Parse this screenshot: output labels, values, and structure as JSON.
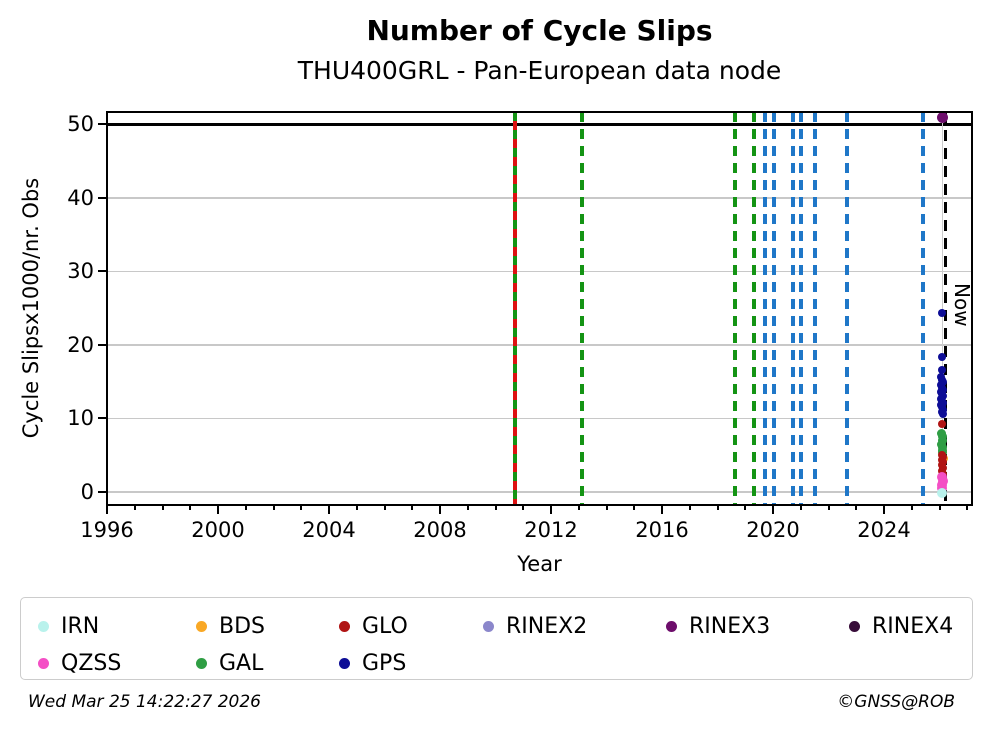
{
  "title": "Number of Cycle Slips",
  "subtitle": "THU400GRL - Pan-European data node",
  "footer": {
    "timestamp": "Wed Mar 25 14:22:27 2026",
    "credit": "©GNSS@ROB"
  },
  "chart_data": {
    "type": "scatter",
    "title": "Number of Cycle Slips",
    "subtitle": "THU400GRL - Pan-European data node",
    "xlabel": "Year",
    "ylabel": "Cycle Slipsx1000/nr. Obs",
    "xlim": [
      1996,
      2027.17
    ],
    "ylim": [
      -1.77,
      51.7
    ],
    "xticks_major": [
      1996,
      2000,
      2004,
      2008,
      2012,
      2016,
      2020,
      2024
    ],
    "xticks_minor_step": 1,
    "yticks": [
      0,
      10,
      20,
      30,
      40,
      50
    ],
    "grid": "horizontal-only",
    "grid_color": "#c8c8c8",
    "cap_line": {
      "value": 50,
      "color": "#000000"
    },
    "now_line": {
      "year": 2026.23,
      "label": "Now",
      "color": "#000000",
      "style": "dashed"
    },
    "event_line_colors": {
      "gal": "#149414",
      "glo": "#dd1111",
      "gps": "#1f77c8"
    },
    "event_lines": [
      {
        "year": 2010.7,
        "kind": "gal_glo"
      },
      {
        "year": 2013.12,
        "kind": "gal"
      },
      {
        "year": 2018.63,
        "kind": "gal"
      },
      {
        "year": 2019.31,
        "kind": "gal"
      },
      {
        "year": 2019.71,
        "kind": "gps"
      },
      {
        "year": 2020.03,
        "kind": "gps"
      },
      {
        "year": 2020.72,
        "kind": "gps"
      },
      {
        "year": 2021.01,
        "kind": "gps"
      },
      {
        "year": 2021.51,
        "kind": "gps"
      },
      {
        "year": 2022.67,
        "kind": "gps"
      },
      {
        "year": 2025.41,
        "kind": "gps"
      }
    ],
    "connector": {
      "year": 2026.1,
      "v_from": 51.0,
      "v_to": -0.2,
      "color": "#cccccc"
    },
    "series": [
      {
        "name": "BDS",
        "color": "#f9a825",
        "size": 9,
        "points": [
          [
            2026.16,
            4.6
          ]
        ]
      },
      {
        "name": "GAL",
        "color": "#2f9e44",
        "size": 9,
        "points": [
          [
            2026.07,
            7.9
          ],
          [
            2026.1,
            7.5
          ],
          [
            2026.12,
            7.0
          ],
          [
            2026.08,
            6.5
          ],
          [
            2026.11,
            6.1
          ],
          [
            2026.09,
            5.7
          ],
          [
            2026.11,
            5.4
          ]
        ]
      },
      {
        "name": "GLO",
        "color": "#b01414",
        "size": 8,
        "points": [
          [
            2026.1,
            9.3
          ],
          [
            2026.08,
            5.1
          ],
          [
            2026.11,
            4.8
          ],
          [
            2026.09,
            4.4
          ],
          [
            2026.12,
            4.1
          ],
          [
            2026.08,
            3.7
          ],
          [
            2026.11,
            3.3
          ],
          [
            2026.09,
            2.9
          ],
          [
            2026.11,
            2.5
          ],
          [
            2026.1,
            2.2
          ]
        ]
      },
      {
        "name": "QZSS",
        "color": "#f44fc5",
        "size": 10,
        "points": [
          [
            2026.09,
            2.0
          ],
          [
            2026.11,
            1.5
          ],
          [
            2026.09,
            1.0
          ],
          [
            2026.1,
            0.5
          ]
        ]
      },
      {
        "name": "IRN",
        "color": "#b9f2ec",
        "size": 10,
        "points": [
          [
            2026.1,
            -0.2
          ]
        ]
      },
      {
        "name": "GPS",
        "color": "#0d0d96",
        "size": 8,
        "points": [
          [
            2026.08,
            24.4
          ],
          [
            2026.08,
            18.3
          ],
          [
            2026.1,
            16.6
          ],
          [
            2026.07,
            15.7
          ],
          [
            2026.1,
            15.3
          ],
          [
            2026.12,
            14.9
          ],
          [
            2026.06,
            14.5
          ],
          [
            2026.09,
            14.2
          ],
          [
            2026.12,
            13.9
          ],
          [
            2026.07,
            13.6
          ],
          [
            2026.1,
            13.3
          ],
          [
            2026.13,
            13.0
          ],
          [
            2026.06,
            12.7
          ],
          [
            2026.09,
            12.4
          ],
          [
            2026.12,
            12.1
          ],
          [
            2026.07,
            11.8
          ],
          [
            2026.1,
            11.5
          ],
          [
            2026.13,
            11.2
          ],
          [
            2026.08,
            10.9
          ],
          [
            2026.11,
            10.6
          ]
        ]
      },
      {
        "name": "RINEX3",
        "color": "#6d0d6b",
        "size": 11,
        "points": [
          [
            2026.1,
            51.0
          ]
        ]
      }
    ],
    "legend": {
      "position": "bottom",
      "entries": [
        {
          "label": "IRN",
          "color": "#b9f2ec"
        },
        {
          "label": "BDS",
          "color": "#f9a825"
        },
        {
          "label": "GLO",
          "color": "#b01414"
        },
        {
          "label": "RINEX2",
          "color": "#8b87cb"
        },
        {
          "label": "RINEX3",
          "color": "#6d0d6b"
        },
        {
          "label": "RINEX4",
          "color": "#380d3a"
        },
        {
          "label": "QZSS",
          "color": "#f44fc5"
        },
        {
          "label": "GAL",
          "color": "#2f9e44"
        },
        {
          "label": "GPS",
          "color": "#0d0d96"
        }
      ]
    }
  }
}
